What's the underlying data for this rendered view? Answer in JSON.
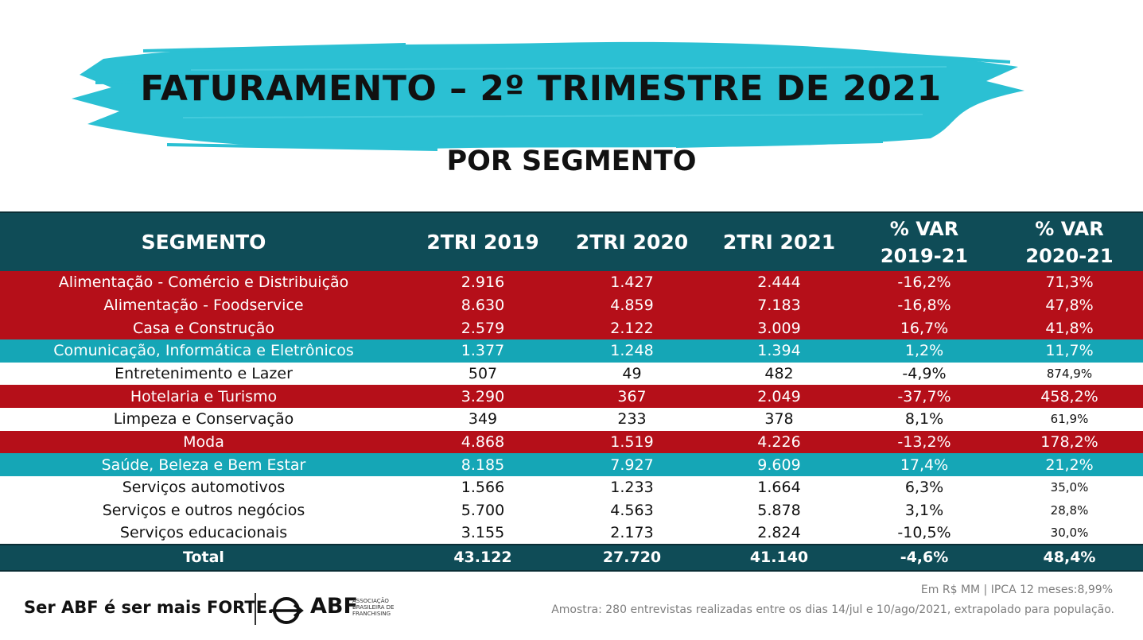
{
  "title": "FATURAMENTO – 2º TRIMESTRE DE 2021",
  "subtitle": "POR SEGMENTO",
  "colors": {
    "header": "#0f4c57",
    "red": "#b50f19",
    "teal": "#15a6b6",
    "brush": "#2bc0d3"
  },
  "table": {
    "headers": {
      "segment": "SEGMENTO",
      "y2019": "2TRI 2019",
      "y2020": "2TRI 2020",
      "y2021": "2TRI 2021",
      "var1_line1": "% VAR",
      "var1_line2": "2019-21",
      "var2_line1": "% VAR",
      "var2_line2": "2020-21"
    },
    "rows": [
      {
        "segment": "Alimentação - Comércio e Distribuição",
        "y2019": "2.916",
        "y2020": "1.427",
        "y2021": "2.444",
        "var1": "-16,2%",
        "var2": "71,3%",
        "style": "red"
      },
      {
        "segment": "Alimentação - Foodservice",
        "y2019": "8.630",
        "y2020": "4.859",
        "y2021": "7.183",
        "var1": "-16,8%",
        "var2": "47,8%",
        "style": "red"
      },
      {
        "segment": "Casa e Construção",
        "y2019": "2.579",
        "y2020": "2.122",
        "y2021": "3.009",
        "var1": "16,7%",
        "var2": "41,8%",
        "style": "red"
      },
      {
        "segment": "Comunicação, Informática e Eletrônicos",
        "y2019": "1.377",
        "y2020": "1.248",
        "y2021": "1.394",
        "var1": "1,2%",
        "var2": "11,7%",
        "style": "teal"
      },
      {
        "segment": "Entretenimento e Lazer",
        "y2019": "507",
        "y2020": "49",
        "y2021": "482",
        "var1": "-4,9%",
        "var2": "874,9%",
        "style": "white"
      },
      {
        "segment": "Hotelaria e Turismo",
        "y2019": "3.290",
        "y2020": "367",
        "y2021": "2.049",
        "var1": "-37,7%",
        "var2": "458,2%",
        "style": "red"
      },
      {
        "segment": "Limpeza e Conservação",
        "y2019": "349",
        "y2020": "233",
        "y2021": "378",
        "var1": "8,1%",
        "var2": "61,9%",
        "style": "white"
      },
      {
        "segment": "Moda",
        "y2019": "4.868",
        "y2020": "1.519",
        "y2021": "4.226",
        "var1": "-13,2%",
        "var2": "178,2%",
        "style": "red"
      },
      {
        "segment": "Saúde, Beleza e Bem Estar",
        "y2019": "8.185",
        "y2020": "7.927",
        "y2021": "9.609",
        "var1": "17,4%",
        "var2": "21,2%",
        "style": "teal"
      },
      {
        "segment": "Serviços automotivos",
        "y2019": "1.566",
        "y2020": "1.233",
        "y2021": "1.664",
        "var1": "6,3%",
        "var2": "35,0%",
        "style": "white"
      },
      {
        "segment": "Serviços e outros negócios",
        "y2019": "5.700",
        "y2020": "4.563",
        "y2021": "5.878",
        "var1": "3,1%",
        "var2": "28,8%",
        "style": "white"
      },
      {
        "segment": "Serviços educacionais",
        "y2019": "3.155",
        "y2020": "2.173",
        "y2021": "2.824",
        "var1": "-10,5%",
        "var2": "30,0%",
        "style": "white"
      }
    ],
    "total": {
      "segment": "Total",
      "y2019": "43.122",
      "y2020": "27.720",
      "y2021": "41.140",
      "var1": "-4,6%",
      "var2": "48,4%"
    }
  },
  "footer": {
    "slogan_part1": "Ser ABF é ser mais ",
    "slogan_part2": "FORTE.",
    "logo_name": "ABF",
    "logo_sub": "ASSOCIAÇÃO BRASILEIRA DE FRANCHISING",
    "note1": "Em R$ MM | IPCA 12 meses:8,99%",
    "note2": "Amostra:  280 entrevistas realizadas entre os dias 14/jul e 10/ago/2021, extrapolado para população."
  }
}
